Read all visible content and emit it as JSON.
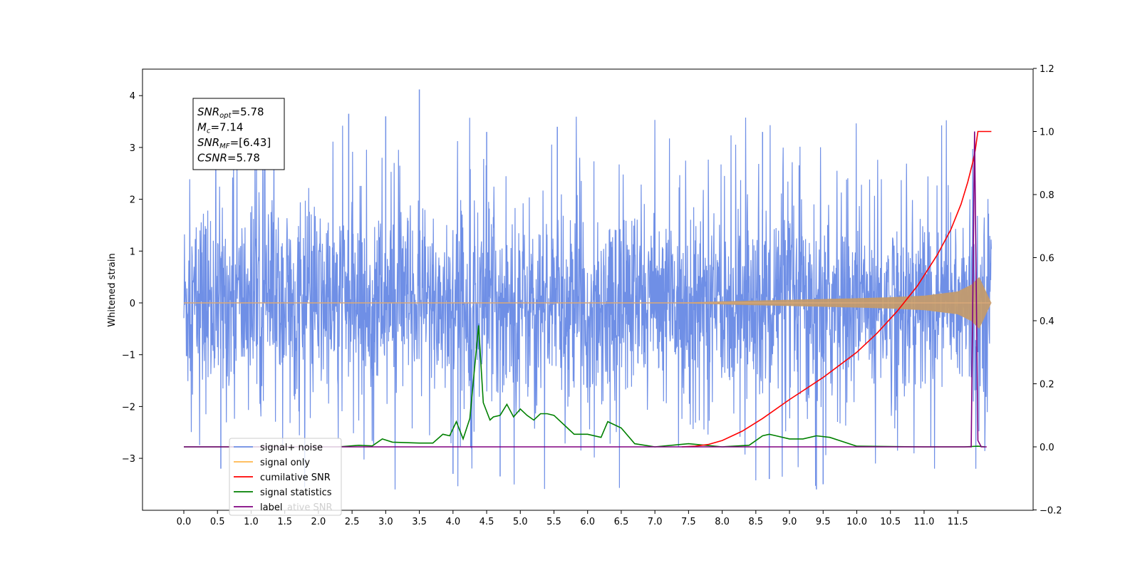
{
  "chart_data": {
    "type": "line",
    "title": "",
    "xlabel": "",
    "ylabel": "Whitened strain",
    "xlim": [
      -0.6,
      12.18
    ],
    "ylim_left": [
      -3.97,
      4.5
    ],
    "ylim_right": [
      -0.2,
      1.2
    ],
    "x_ticks": [
      "0.0",
      "0.5",
      "1.0",
      "1.5",
      "2.0",
      "2.5",
      "3.0",
      "3.5",
      "4.0",
      "4.5",
      "5.0",
      "5.5",
      "6.0",
      "6.5",
      "7.0",
      "7.5",
      "8.0",
      "8.5",
      "9.0",
      "9.5",
      "10.0",
      "10.5",
      "11.0",
      "11.5"
    ],
    "y_left_ticks": [
      "4",
      "3",
      "2",
      "1",
      "0",
      "−1",
      "−2",
      "−3"
    ],
    "y_right_ticks": [
      "1.2",
      "1.0",
      "0.8",
      "0.6",
      "0.4",
      "0.2",
      "0.0",
      "−0.2"
    ],
    "grid": false,
    "legend_position": "lower-left",
    "annotation": {
      "lines": [
        {
          "name": "SNR",
          "sub": "opt",
          "value": "=5.78"
        },
        {
          "name": "M",
          "sub": "c",
          "value": "=7.14"
        },
        {
          "name": "SNR",
          "sub": "MF",
          "value": "=[6.43]"
        },
        {
          "name": "CSNR",
          "sub": "",
          "value": "=5.78"
        }
      ]
    },
    "series": [
      {
        "name": "signal+ noise",
        "axis": "left",
        "color": "#6f8fe6",
        "description_values": {
          "x_range": [
            0.0,
            12.0
          ],
          "amplitude_core": 1.5,
          "peak_max": 4.12,
          "peak_min": -3.6
        }
      },
      {
        "name": "signal only",
        "axis": "left",
        "color": "#ffb74d",
        "envelope": {
          "x": [
            0.0,
            7.0,
            7.5,
            8.0,
            9.0,
            10.0,
            10.5,
            11.0,
            11.5,
            11.7,
            11.82,
            12.0
          ],
          "amp": [
            0.0,
            0.0,
            0.01,
            0.03,
            0.06,
            0.09,
            0.11,
            0.14,
            0.22,
            0.35,
            0.5,
            0.0
          ]
        }
      },
      {
        "name": "cumilative SNR",
        "axis": "right",
        "color": "#ff0000",
        "x": [
          7.4,
          7.6,
          7.8,
          8.0,
          8.3,
          8.6,
          9.0,
          9.5,
          10.0,
          10.3,
          10.6,
          10.9,
          11.2,
          11.4,
          11.55,
          11.65,
          11.72,
          11.76,
          11.8,
          11.85,
          12.0
        ],
        "y": [
          0.0,
          0.002,
          0.008,
          0.02,
          0.05,
          0.09,
          0.15,
          0.22,
          0.3,
          0.36,
          0.43,
          0.51,
          0.61,
          0.69,
          0.77,
          0.84,
          0.9,
          0.94,
          1.0,
          1.0,
          1.0
        ]
      },
      {
        "name": "signal statistics",
        "axis": "right",
        "color": "#008000",
        "x": [
          0.0,
          1.9,
          2.3,
          2.6,
          2.8,
          2.95,
          3.1,
          3.5,
          3.7,
          3.85,
          3.95,
          4.05,
          4.15,
          4.25,
          4.38,
          4.45,
          4.55,
          4.6,
          4.7,
          4.8,
          4.9,
          5.0,
          5.1,
          5.2,
          5.3,
          5.4,
          5.5,
          5.7,
          5.8,
          5.9,
          6.0,
          6.2,
          6.3,
          6.5,
          6.7,
          7.0,
          7.5,
          8.0,
          8.4,
          8.6,
          8.7,
          8.8,
          9.0,
          9.2,
          9.4,
          9.6,
          10.0,
          11.0,
          11.6,
          11.8,
          11.9
        ],
        "y": [
          0.0,
          0.0,
          0.0,
          0.005,
          0.003,
          0.025,
          0.015,
          0.012,
          0.012,
          0.04,
          0.035,
          0.08,
          0.025,
          0.09,
          0.385,
          0.14,
          0.085,
          0.095,
          0.1,
          0.135,
          0.095,
          0.12,
          0.1,
          0.085,
          0.105,
          0.105,
          0.1,
          0.06,
          0.04,
          0.04,
          0.04,
          0.03,
          0.08,
          0.06,
          0.01,
          0.0,
          0.01,
          0.0,
          0.005,
          0.035,
          0.04,
          0.035,
          0.025,
          0.025,
          0.035,
          0.03,
          0.002,
          0.0,
          0.0,
          0.002,
          0.0
        ]
      },
      {
        "name": "label",
        "axis": "right",
        "color": "#800080",
        "x": [
          0.0,
          11.65,
          11.7,
          11.75,
          11.8,
          11.85,
          11.93
        ],
        "y": [
          0.0,
          0.0,
          0.0,
          1.0,
          0.02,
          0.0,
          0.0
        ]
      }
    ],
    "legend": [
      {
        "label": "signal+ noise",
        "color": "#6f8fe6"
      },
      {
        "label": "signal only",
        "color": "#ffb74d"
      },
      {
        "label": "cumilative SNR",
        "color": "#ff0000"
      },
      {
        "label": "signal statistics",
        "color": "#008000"
      },
      {
        "label": "label",
        "color": "#800080"
      }
    ],
    "legend_overflow_text": "ative SNR"
  }
}
